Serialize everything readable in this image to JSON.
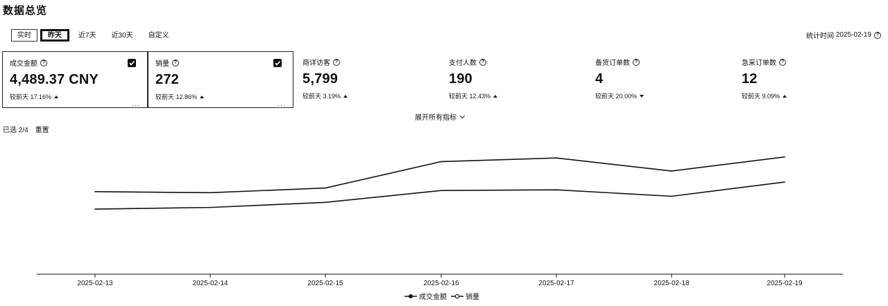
{
  "page": {
    "title": "数据总览"
  },
  "tabs": [
    {
      "label": "实时"
    },
    {
      "label": "昨天"
    },
    {
      "label": "近7天"
    },
    {
      "label": "近30天"
    },
    {
      "label": "自定义"
    }
  ],
  "stat_date": {
    "label": "统计时间",
    "value": "2025-02-19"
  },
  "metrics": [
    {
      "label": "成交金额",
      "value": "4,489.37 CNY",
      "compare": "较前天 17.16%",
      "trend": "up",
      "selected": true
    },
    {
      "label": "销量",
      "value": "272",
      "compare": "较前天 12.86%",
      "trend": "up",
      "selected": true
    },
    {
      "label": "商详访客",
      "value": "5,799",
      "compare": "较前天 3.19%",
      "trend": "up",
      "selected": false
    },
    {
      "label": "支付人数",
      "value": "190",
      "compare": "较前天 12.43%",
      "trend": "up",
      "selected": false
    },
    {
      "label": "备货订单数",
      "value": "4",
      "compare": "较前天 20.00%",
      "trend": "down",
      "selected": false
    },
    {
      "label": "急采订单数",
      "value": "12",
      "compare": "较前天 9.09%",
      "trend": "up",
      "selected": false
    }
  ],
  "expand_label": "展开所有指标",
  "selection": {
    "count_label": "已选 2/4",
    "reset_label": "重置"
  },
  "chart_data": {
    "type": "line",
    "x": [
      "2025-02-13",
      "2025-02-14",
      "2025-02-15",
      "2025-02-16",
      "2025-02-17",
      "2025-02-18",
      "2025-02-19"
    ],
    "series": [
      {
        "name": "成交金额",
        "values": [
          3160,
          3120,
          3300,
          4310,
          4450,
          3950,
          4489.37
        ]
      },
      {
        "name": "销量",
        "values": [
          192,
          197,
          212,
          247,
          249,
          230,
          272
        ]
      }
    ],
    "grid": false,
    "legend_position": "bottom-center"
  },
  "legend": [
    {
      "label": "成交金额",
      "marker": "filled"
    },
    {
      "label": "销量",
      "marker": "hollow"
    }
  ]
}
